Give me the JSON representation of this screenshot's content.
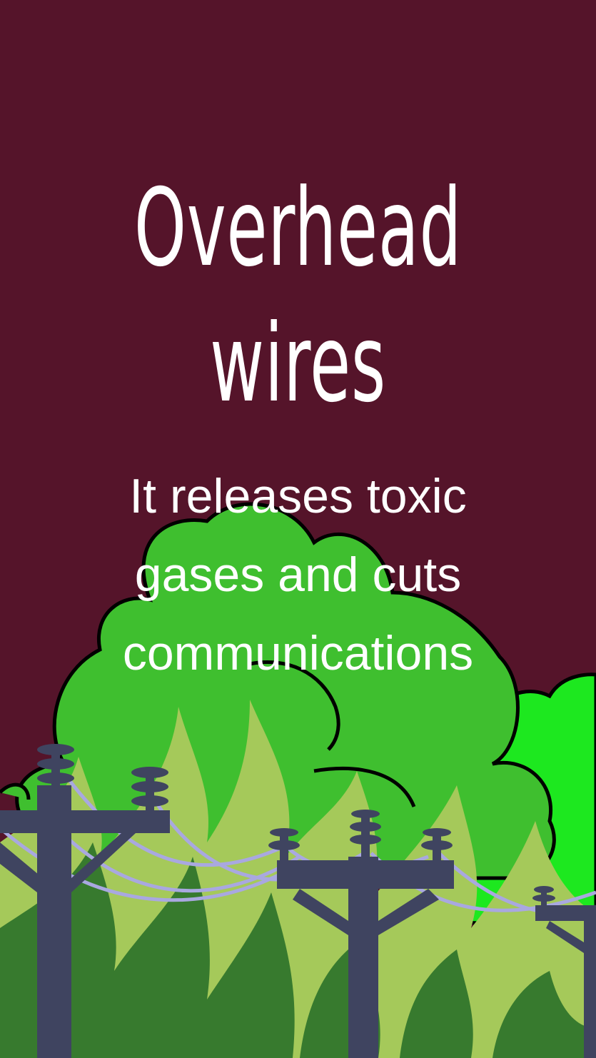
{
  "poster": {
    "title_line1": "Overhead",
    "title_line2": "wires",
    "subtitle_line1": "It releases toxic",
    "subtitle_line2": "gases and cuts",
    "subtitle_line3": "communications"
  },
  "colors": {
    "background": "#55142a",
    "smoke_green": "#3fbf2f",
    "bright_green": "#1de81f",
    "flame_light": "#a5c95a",
    "ground_green": "#377a2e",
    "pole": "#3f4460",
    "wire": "#a9a8e0",
    "text": "#ffffff"
  },
  "icons": [
    "smoke-cloud-icon",
    "flame-icon",
    "utility-pole-icon",
    "power-wire-icon"
  ]
}
